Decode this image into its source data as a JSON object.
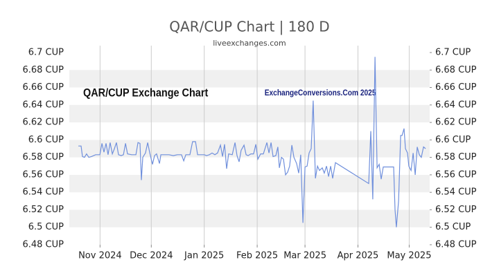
{
  "chart_data": {
    "type": "line",
    "title": "QAR/CUP Chart | 180 D",
    "subtitle": "liveexchanges.com",
    "annotations": [
      "QAR/CUP Exchange Chart",
      "ExchangeConversions.Com 2025"
    ],
    "color": "#6f8fdc",
    "grid": true,
    "xlim": [
      0,
      211
    ],
    "xticks": [
      {
        "value": 18,
        "label": "Nov 2024"
      },
      {
        "value": 48,
        "label": "Dec 2024"
      },
      {
        "value": 79,
        "label": "Jan 2025"
      },
      {
        "value": 110,
        "label": "Feb 2025"
      },
      {
        "value": 138,
        "label": "Mar 2025"
      },
      {
        "value": 169,
        "label": "Apr 2025"
      },
      {
        "value": 199,
        "label": "May 2025"
      }
    ],
    "ylim": [
      6.48,
      6.7
    ],
    "yticks": [
      {
        "value": 6.48,
        "label": "6.48 CUP"
      },
      {
        "value": 6.5,
        "label": "6.5 CUP"
      },
      {
        "value": 6.52,
        "label": "6.52 CUP"
      },
      {
        "value": 6.54,
        "label": "6.54 CUP"
      },
      {
        "value": 6.56,
        "label": "6.56 CUP"
      },
      {
        "value": 6.58,
        "label": "6.58 CUP"
      },
      {
        "value": 6.6,
        "label": "6.6 CUP"
      },
      {
        "value": 6.62,
        "label": "6.62 CUP"
      },
      {
        "value": 6.64,
        "label": "6.64 CUP"
      },
      {
        "value": 6.66,
        "label": "6.66 CUP"
      },
      {
        "value": 6.68,
        "label": "6.68 CUP"
      },
      {
        "value": 6.7,
        "label": "6.7 CUP"
      }
    ],
    "x": [
      5.3,
      6.9,
      7.7,
      8.9,
      10.1,
      11.4,
      13.0,
      15.4,
      17.9,
      19.1,
      20.3,
      21.5,
      22.7,
      23.9,
      25.2,
      26.4,
      27.6,
      28.8,
      30.4,
      31.7,
      32.9,
      34.1,
      36.5,
      39.0,
      40.2,
      41.4,
      42.2,
      43.0,
      44.6,
      45.9,
      47.1,
      48.7,
      49.9,
      51.1,
      52.8,
      53.6,
      56.0,
      58.4,
      60.9,
      63.3,
      65.7,
      67.0,
      68.2,
      70.6,
      72.2,
      73.9,
      75.1,
      77.1,
      79.1,
      80.3,
      82.0,
      83.6,
      85.2,
      86.8,
      88.5,
      89.7,
      90.9,
      92.1,
      93.3,
      95.4,
      97.0,
      98.2,
      99.4,
      100.6,
      102.3,
      103.5,
      104.7,
      106.3,
      107.9,
      109.2,
      110.4,
      112.0,
      113.6,
      115.7,
      116.9,
      118.1,
      119.3,
      120.9,
      122.1,
      123.0,
      124.2,
      125.4,
      126.6,
      127.8,
      129.0,
      130.3,
      131.5,
      133.1,
      134.3,
      135.5,
      136.8,
      138.0,
      139.2,
      140.4,
      141.6,
      142.8,
      144.1,
      145.3,
      146.5,
      148.1,
      149.3,
      150.6,
      151.8,
      153.0,
      154.2,
      155.8,
      175.3,
      176.5,
      177.7,
      179.0,
      180.2,
      181.4,
      182.6,
      183.8,
      185.0,
      187.5,
      189.9,
      190.7,
      191.5,
      192.8,
      194.0,
      194.8,
      196.0,
      196.8,
      198.0,
      198.8,
      200.1,
      201.3,
      202.5,
      203.7,
      204.9,
      206.1,
      207.4,
      208.6
    ],
    "values": [
      6.593,
      6.593,
      6.581,
      6.58,
      6.584,
      6.58,
      6.581,
      6.583,
      6.583,
      6.596,
      6.586,
      6.596,
      6.583,
      6.597,
      6.584,
      6.59,
      6.597,
      6.583,
      6.582,
      6.583,
      6.596,
      6.584,
      6.583,
      6.583,
      6.597,
      6.596,
      6.554,
      6.58,
      6.585,
      6.597,
      6.585,
      6.572,
      6.582,
      6.584,
      6.573,
      6.583,
      6.583,
      6.583,
      6.582,
      6.583,
      6.583,
      6.576,
      6.583,
      6.583,
      6.598,
      6.598,
      6.583,
      6.583,
      6.583,
      6.582,
      6.583,
      6.585,
      6.583,
      6.585,
      6.594,
      6.581,
      6.595,
      6.567,
      6.584,
      6.583,
      6.597,
      6.582,
      6.575,
      6.588,
      6.594,
      6.583,
      6.582,
      6.584,
      6.584,
      6.595,
      6.578,
      6.584,
      6.584,
      6.597,
      6.585,
      6.597,
      6.581,
      6.582,
      6.592,
      6.568,
      6.58,
      6.578,
      6.56,
      6.563,
      6.57,
      6.594,
      6.58,
      6.573,
      6.562,
      6.583,
      6.505,
      6.569,
      6.57,
      6.585,
      6.59,
      6.645,
      6.556,
      6.57,
      6.565,
      6.568,
      6.562,
      6.57,
      6.558,
      6.57,
      6.556,
      6.574,
      6.55,
      6.61,
      6.532,
      6.695,
      6.568,
      6.572,
      6.555,
      6.569,
      6.569,
      6.569,
      6.569,
      6.52,
      6.5,
      6.53,
      6.605,
      6.605,
      6.613,
      6.59,
      6.585,
      6.57,
      6.565,
      6.585,
      6.56,
      6.592,
      6.583,
      6.58,
      6.592,
      6.59
    ]
  }
}
